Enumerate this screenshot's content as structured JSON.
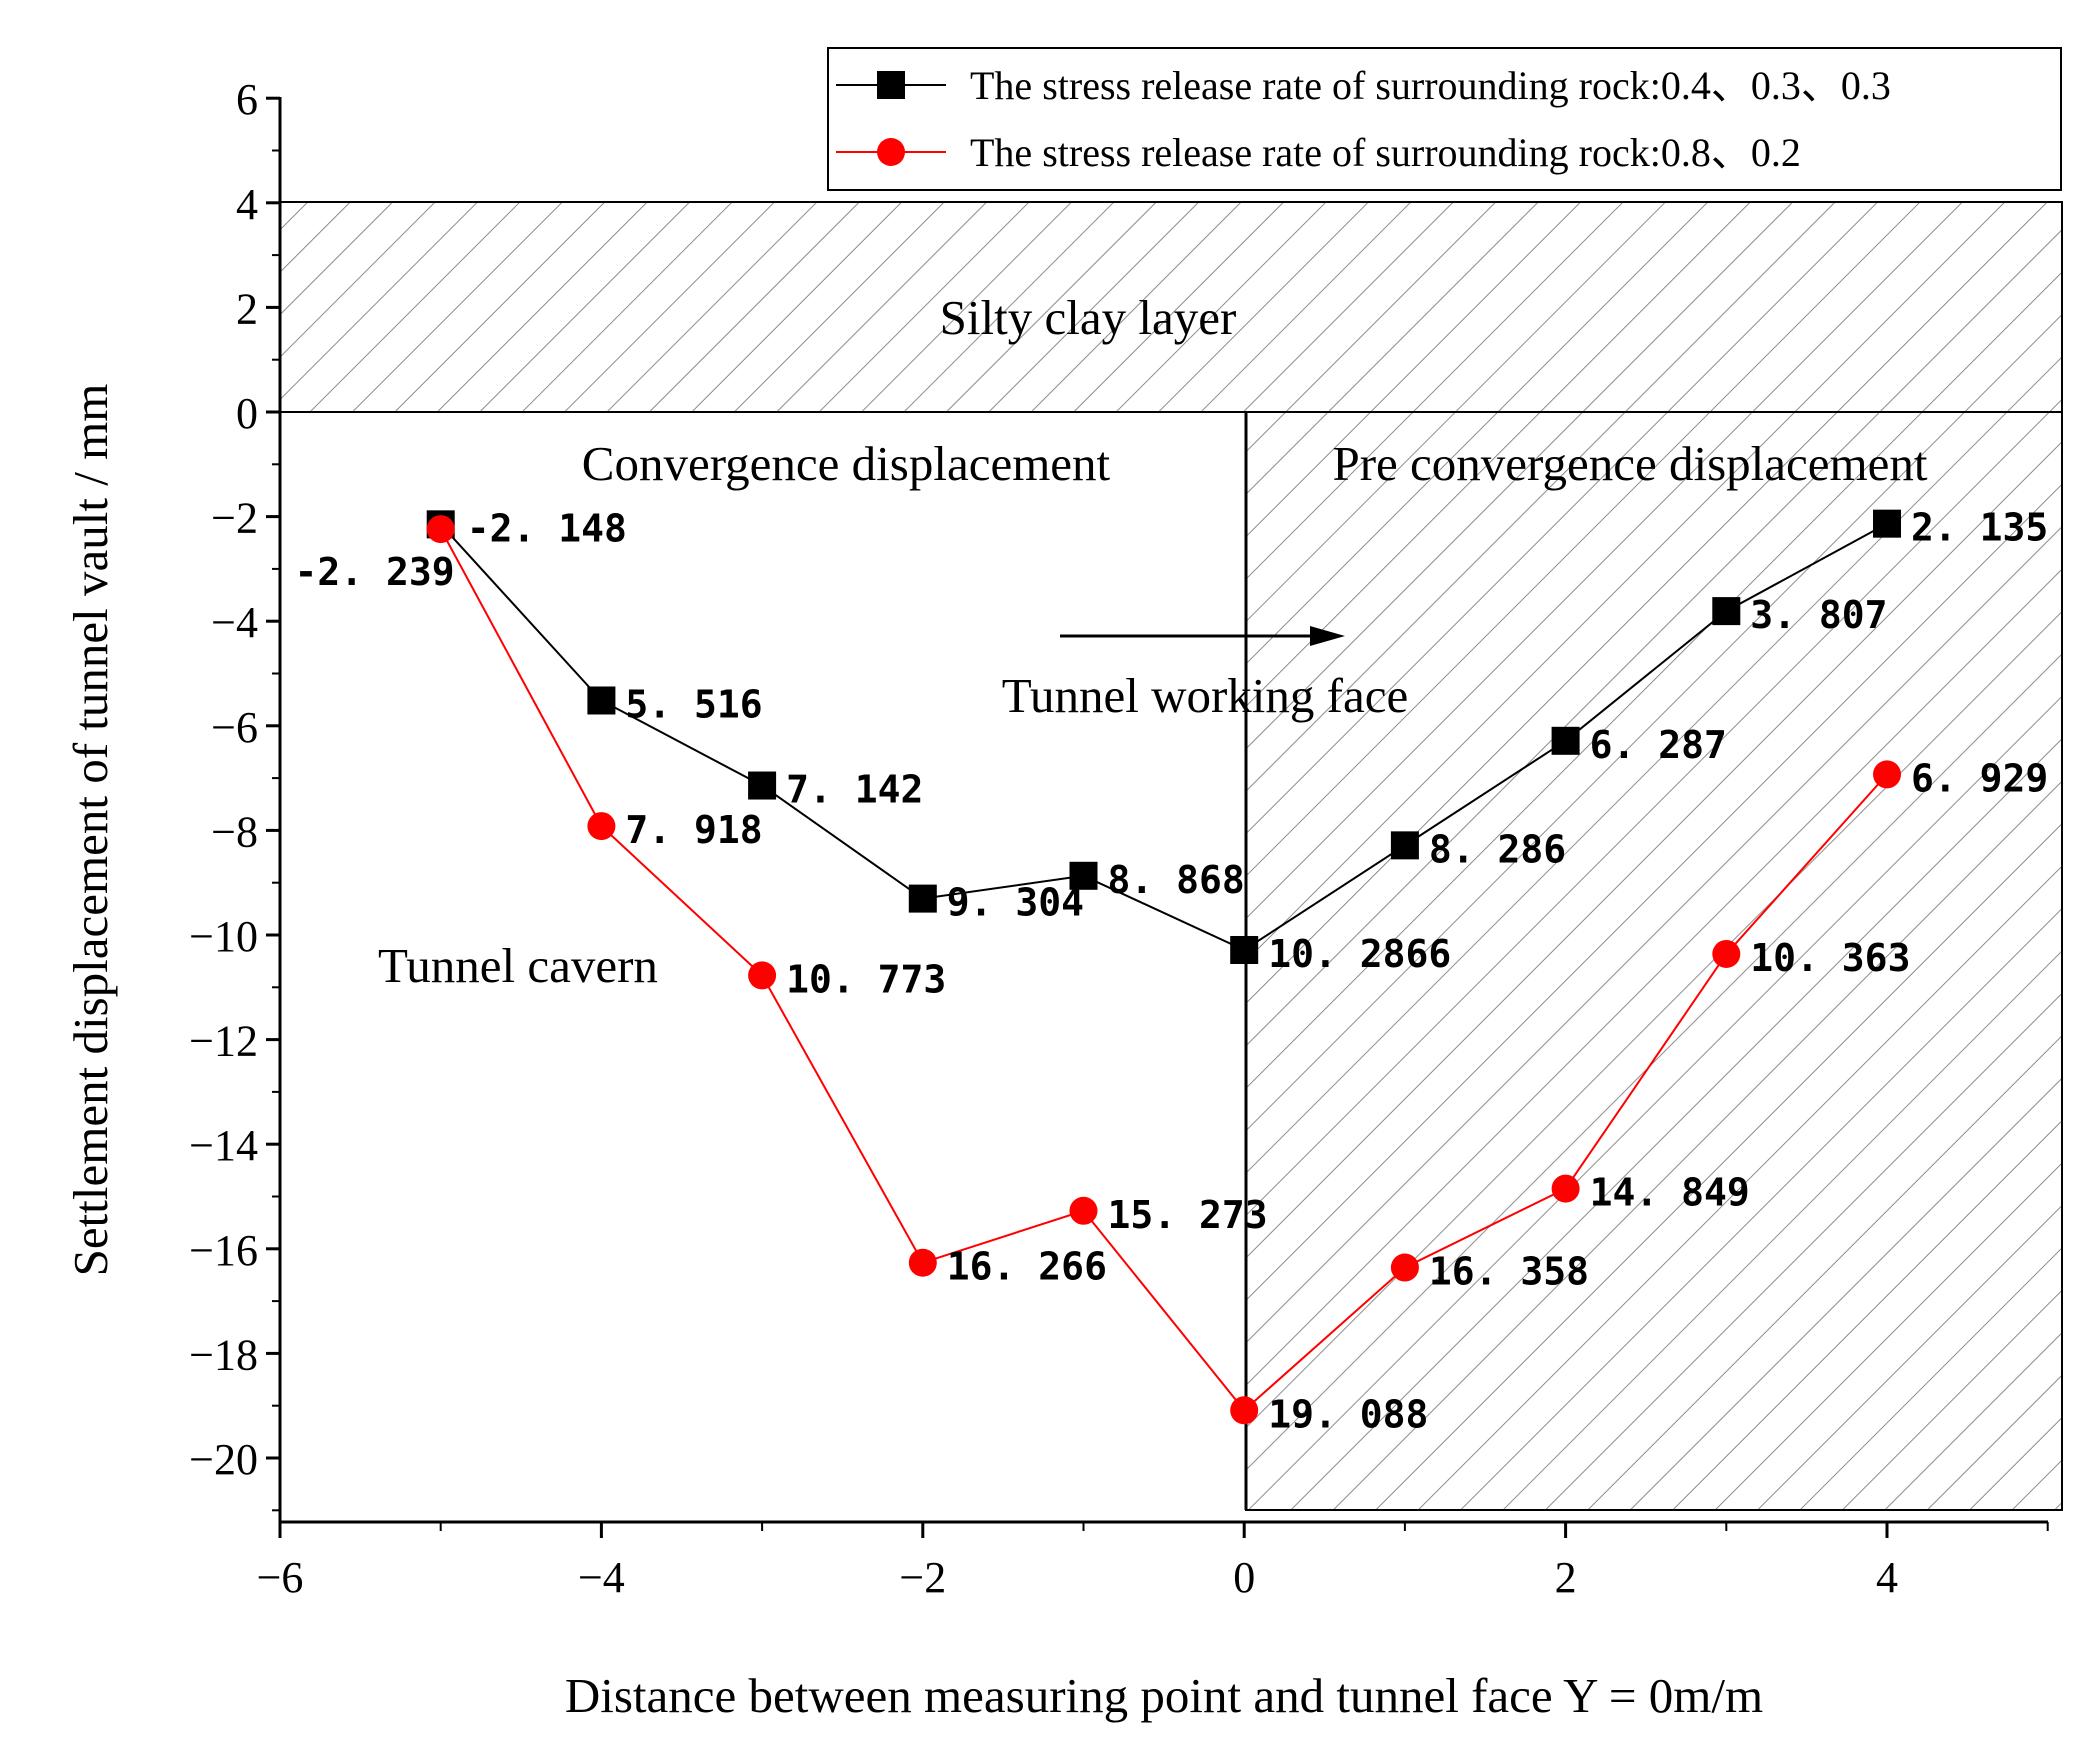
{
  "chart_data": {
    "type": "line",
    "title": "",
    "xlabel": "Distance between measuring point and tunnel face Y = 0m/m",
    "ylabel": "Settlement displacement of tunnel vault / mm",
    "xlim": [
      -6,
      5
    ],
    "ylim": [
      -21,
      6
    ],
    "x_ticks": [
      -6,
      -4,
      -2,
      0,
      2,
      4
    ],
    "x_tick_labels": [
      "−6",
      "−4",
      "−2",
      "0",
      "2",
      "4"
    ],
    "y_ticks": [
      6,
      4,
      2,
      0,
      -2,
      -4,
      -6,
      -8,
      -10,
      -12,
      -14,
      -16,
      -18,
      -20
    ],
    "y_tick_labels": [
      "6",
      "4",
      "2",
      "0",
      "−2",
      "−4",
      "−6",
      "−8",
      "−10",
      "−12",
      "−14",
      "−16",
      "−18",
      "−20"
    ],
    "legend_position": "top-right",
    "series": [
      {
        "name": "The stress release rate of surrounding rock:0.4、0.3、0.3",
        "color": "#000000",
        "marker": "square",
        "x": [
          -5,
          -4,
          -3,
          -2,
          -1,
          0,
          1,
          2,
          3,
          4
        ],
        "y": [
          -2.148,
          -5.516,
          -7.142,
          -9.304,
          -8.868,
          -10.2866,
          -8.286,
          -6.287,
          -3.807,
          -2.135
        ],
        "labels": [
          "-2. 148",
          "5. 516",
          "7. 142",
          "9. 304",
          "8. 868",
          "10. 2866",
          "8. 286",
          "6. 287",
          "3. 807",
          "2. 135"
        ]
      },
      {
        "name": "The stress release rate of surrounding rock:0.8、0.2",
        "color": "#ff0000",
        "marker": "circle",
        "x": [
          -5,
          -4,
          -3,
          -2,
          -1,
          0,
          1,
          2,
          3,
          4
        ],
        "y": [
          -2.239,
          -7.918,
          -10.773,
          -16.266,
          -15.273,
          -19.088,
          -16.358,
          -14.849,
          -10.363,
          -6.929
        ],
        "labels": [
          "-2. 239",
          "7. 918",
          "10. 773",
          "16. 266",
          "15. 273",
          "19. 088",
          "16. 358",
          "14. 849",
          "10. 363",
          "6. 929"
        ]
      }
    ],
    "annotations": {
      "silty_clay": "Silty clay layer",
      "convergence": "Convergence displacement",
      "pre_convergence": "Pre convergence displacement",
      "working_face": "Tunnel working face",
      "cavern": "Tunnel cavern"
    }
  }
}
